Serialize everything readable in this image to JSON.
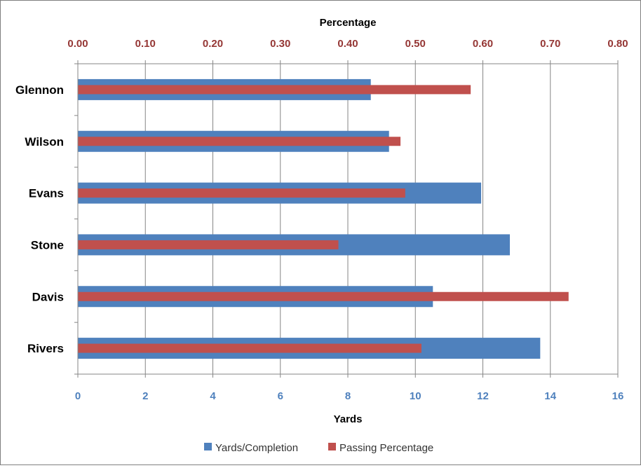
{
  "chart_data": {
    "type": "bar",
    "orientation": "horizontal",
    "categories": [
      "Glennon",
      "Wilson",
      "Evans",
      "Stone",
      "Davis",
      "Rivers"
    ],
    "series": [
      {
        "name": "Yards/Completion",
        "axis": "bottom",
        "color": "#4f81bd",
        "values": [
          8.68,
          9.22,
          11.95,
          12.8,
          10.52,
          13.7
        ]
      },
      {
        "name": "Passing Percentage",
        "axis": "top",
        "color": "#c0504d",
        "values": [
          0.582,
          0.478,
          0.485,
          0.386,
          0.727,
          0.509
        ]
      }
    ],
    "top_axis": {
      "title": "Percentage",
      "range": [
        0,
        0.8
      ],
      "ticks": [
        "0.00",
        "0.10",
        "0.20",
        "0.30",
        "0.40",
        "0.50",
        "0.60",
        "0.70",
        "0.80"
      ],
      "tick_color": "#953735"
    },
    "bottom_axis": {
      "title": "Yards",
      "range": [
        0,
        16
      ],
      "ticks": [
        "0",
        "2",
        "4",
        "6",
        "8",
        "10",
        "12",
        "14",
        "16"
      ],
      "tick_color": "#4f81bd"
    },
    "grid": "vertical",
    "legend": "bottom"
  }
}
